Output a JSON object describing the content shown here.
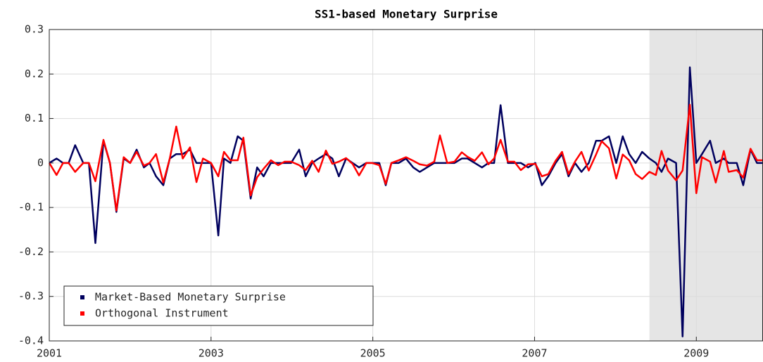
{
  "chart_data": {
    "type": "line",
    "title": "SS1-based Monetary Surprise",
    "x": [
      2001.0,
      2001.09,
      2001.17,
      2001.24,
      2001.32,
      2001.42,
      2001.49,
      2001.57,
      2001.67,
      2001.75,
      2001.83,
      2001.92,
      2002.0,
      2002.08,
      2002.17,
      2002.24,
      2002.32,
      2002.41,
      2002.49,
      2002.57,
      2002.65,
      2002.74,
      2002.82,
      2002.9,
      2003.0,
      2003.09,
      2003.16,
      2003.24,
      2003.33,
      2003.4,
      2003.49,
      2003.57,
      2003.65,
      2003.74,
      2003.83,
      2003.91,
      2003.99,
      2004.09,
      2004.17,
      2004.25,
      2004.33,
      2004.42,
      2004.5,
      2004.58,
      2004.67,
      2004.75,
      2004.83,
      2004.92,
      2004.99,
      2005.08,
      2005.16,
      2005.23,
      2005.32,
      2005.41,
      2005.5,
      2005.58,
      2005.67,
      2005.76,
      2005.83,
      2005.92,
      2006.01,
      2006.1,
      2006.17,
      2006.26,
      2006.35,
      2006.43,
      2006.5,
      2006.58,
      2006.67,
      2006.75,
      2006.83,
      2006.92,
      2007.01,
      2007.09,
      2007.17,
      2007.26,
      2007.34,
      2007.42,
      2007.5,
      2007.58,
      2007.67,
      2007.76,
      2007.83,
      2007.92,
      2008.01,
      2008.09,
      2008.17,
      2008.25,
      2008.33,
      2008.42,
      2008.5,
      2008.57,
      2008.65,
      2008.75,
      2008.83,
      2008.92,
      2009.0,
      2009.07,
      2009.17,
      2009.24,
      2009.34,
      2009.4,
      2009.5,
      2009.58,
      2009.67,
      2009.75,
      2009.82
    ],
    "series": [
      {
        "name": "Market-Based Monetary Surprise",
        "color": "#00005e",
        "values": [
          0,
          0.01,
          0,
          0,
          0.04,
          0,
          0,
          -0.18,
          0.05,
          0,
          -0.11,
          0.01,
          0,
          0.03,
          -0.01,
          0,
          -0.03,
          -0.05,
          0.01,
          0.02,
          0.02,
          0.03,
          0,
          0,
          0,
          -0.163,
          0.01,
          0,
          0.06,
          0.05,
          -0.08,
          -0.01,
          -0.03,
          0,
          0,
          0,
          0,
          0.03,
          -0.03,
          0,
          0.01,
          0.02,
          0.01,
          -0.03,
          0.01,
          0,
          -0.01,
          0,
          0,
          0,
          -0.05,
          0,
          0,
          0.01,
          -0.01,
          -0.02,
          -0.01,
          0,
          0,
          0,
          0,
          0.01,
          0.01,
          0,
          -0.01,
          0,
          0,
          0.13,
          0,
          0,
          0,
          -0.01,
          0,
          -0.05,
          -0.03,
          0,
          0.02,
          -0.03,
          0,
          -0.02,
          0,
          0.05,
          0.05,
          0.06,
          0,
          0.06,
          0.02,
          0,
          0.025,
          0.01,
          0,
          -0.02,
          0.01,
          0,
          -0.39,
          0.215,
          0,
          0.02,
          0.05,
          0,
          0.01,
          0,
          0,
          -0.05,
          0.03,
          0,
          0
        ]
      },
      {
        "name": "Orthogonal Instrument",
        "color": "#ff0000",
        "values": [
          0,
          -0.027,
          0,
          0,
          -0.02,
          0,
          0,
          -0.041,
          0.052,
          0,
          -0.107,
          0.013,
          0,
          0.025,
          -0.006,
          0,
          0.02,
          -0.044,
          0.01,
          0.082,
          0.01,
          0.035,
          -0.043,
          0.01,
          0,
          -0.03,
          0.025,
          0.006,
          0.006,
          0.057,
          -0.073,
          -0.032,
          -0.013,
          0.006,
          -0.005,
          0.003,
          0.003,
          -0.005,
          -0.016,
          0.005,
          -0.02,
          0.028,
          -0.002,
          0.003,
          0.011,
          -0.002,
          -0.028,
          0,
          0,
          -0.005,
          -0.047,
          0,
          0.006,
          0.013,
          0.005,
          -0.003,
          -0.006,
          0.003,
          0.062,
          0,
          0.003,
          0.024,
          0.014,
          0.005,
          0.024,
          -0.003,
          0.01,
          0.052,
          0.003,
          0.003,
          -0.016,
          -0.003,
          -0.002,
          -0.03,
          -0.025,
          0.005,
          0.025,
          -0.025,
          0.003,
          0.025,
          -0.017,
          0.019,
          0.049,
          0.033,
          -0.035,
          0.019,
          0.006,
          -0.025,
          -0.036,
          -0.02,
          -0.027,
          0.027,
          -0.017,
          -0.039,
          -0.017,
          0.131,
          -0.068,
          0.013,
          0.003,
          -0.044,
          0.027,
          -0.02,
          -0.016,
          -0.033,
          0.032,
          0.006,
          0.006
        ]
      }
    ],
    "shaded_regions": [
      [
        2008.42,
        2009.82
      ]
    ],
    "shade_color": "#e5e5e5",
    "xlim": [
      2001,
      2009.82
    ],
    "xticks": [
      2001,
      2003,
      2005,
      2007,
      2009
    ],
    "ylim": [
      -0.4,
      0.3
    ],
    "yticks": [
      -0.4,
      -0.3,
      -0.2,
      -0.1,
      0,
      0.1,
      0.2,
      0.3
    ],
    "grid": true,
    "legend": "lower-left"
  }
}
